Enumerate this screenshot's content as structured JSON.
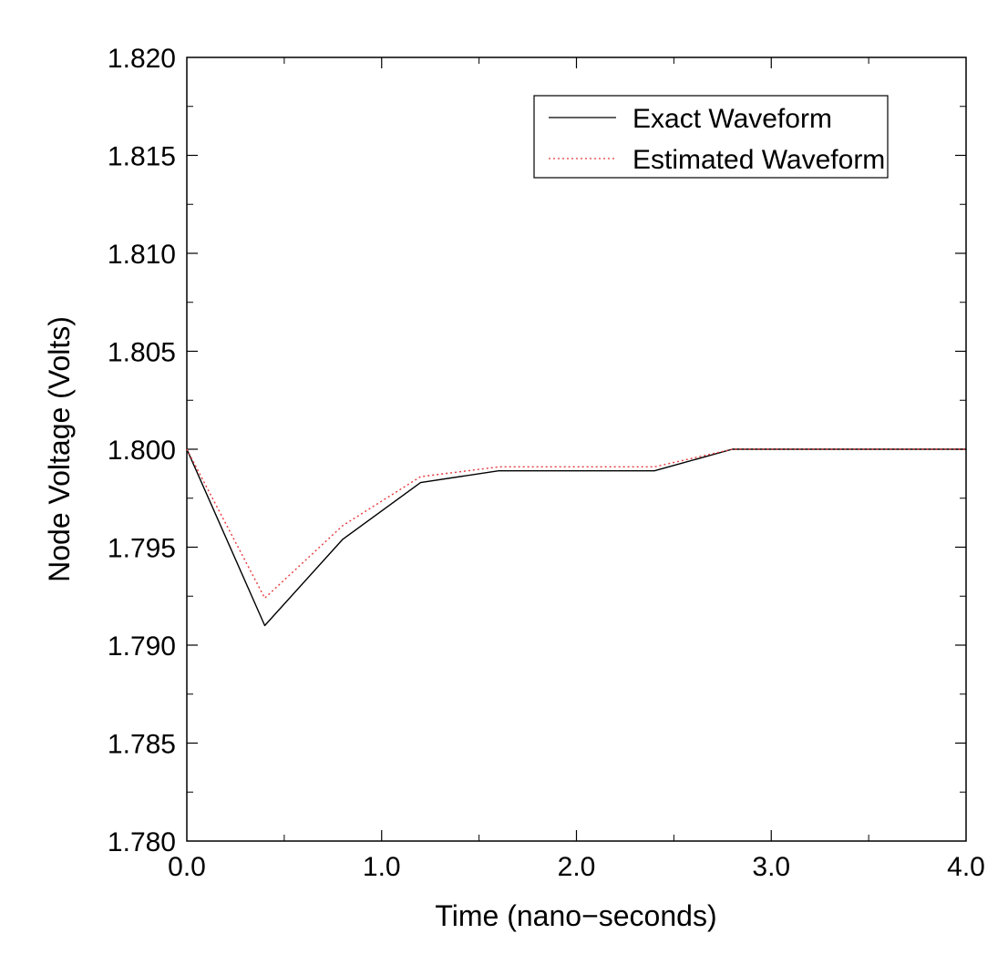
{
  "chart_data": {
    "type": "line",
    "xlabel": "Time (nano−seconds)",
    "ylabel": "Node Voltage (Volts)",
    "xlim": [
      0.0,
      4.0
    ],
    "ylim": [
      1.78,
      1.82
    ],
    "x_ticks": [
      "0.0",
      "1.0",
      "2.0",
      "3.0",
      "4.0"
    ],
    "y_ticks": [
      "1.780",
      "1.785",
      "1.790",
      "1.795",
      "1.800",
      "1.805",
      "1.810",
      "1.815",
      "1.820"
    ],
    "grid": false,
    "legend_position": "top-right",
    "series": [
      {
        "name": "Exact Waveform",
        "color": "#000000",
        "dash": "solid",
        "x": [
          0.0,
          0.4,
          0.8,
          1.2,
          1.6,
          2.0,
          2.4,
          2.8,
          3.2,
          3.6,
          4.0
        ],
        "y": [
          1.8,
          1.791,
          1.7954,
          1.7983,
          1.7989,
          1.7989,
          1.7989,
          1.8,
          1.8,
          1.8,
          1.8
        ]
      },
      {
        "name": "Estimated Waveform",
        "color": "#e8383b",
        "dash": "dotted",
        "x": [
          0.0,
          0.4,
          0.8,
          1.2,
          1.6,
          2.0,
          2.4,
          2.8,
          3.2,
          3.6,
          4.0
        ],
        "y": [
          1.8,
          1.7924,
          1.7961,
          1.7986,
          1.7991,
          1.7991,
          1.7991,
          1.8,
          1.8,
          1.8,
          1.8
        ]
      }
    ]
  }
}
